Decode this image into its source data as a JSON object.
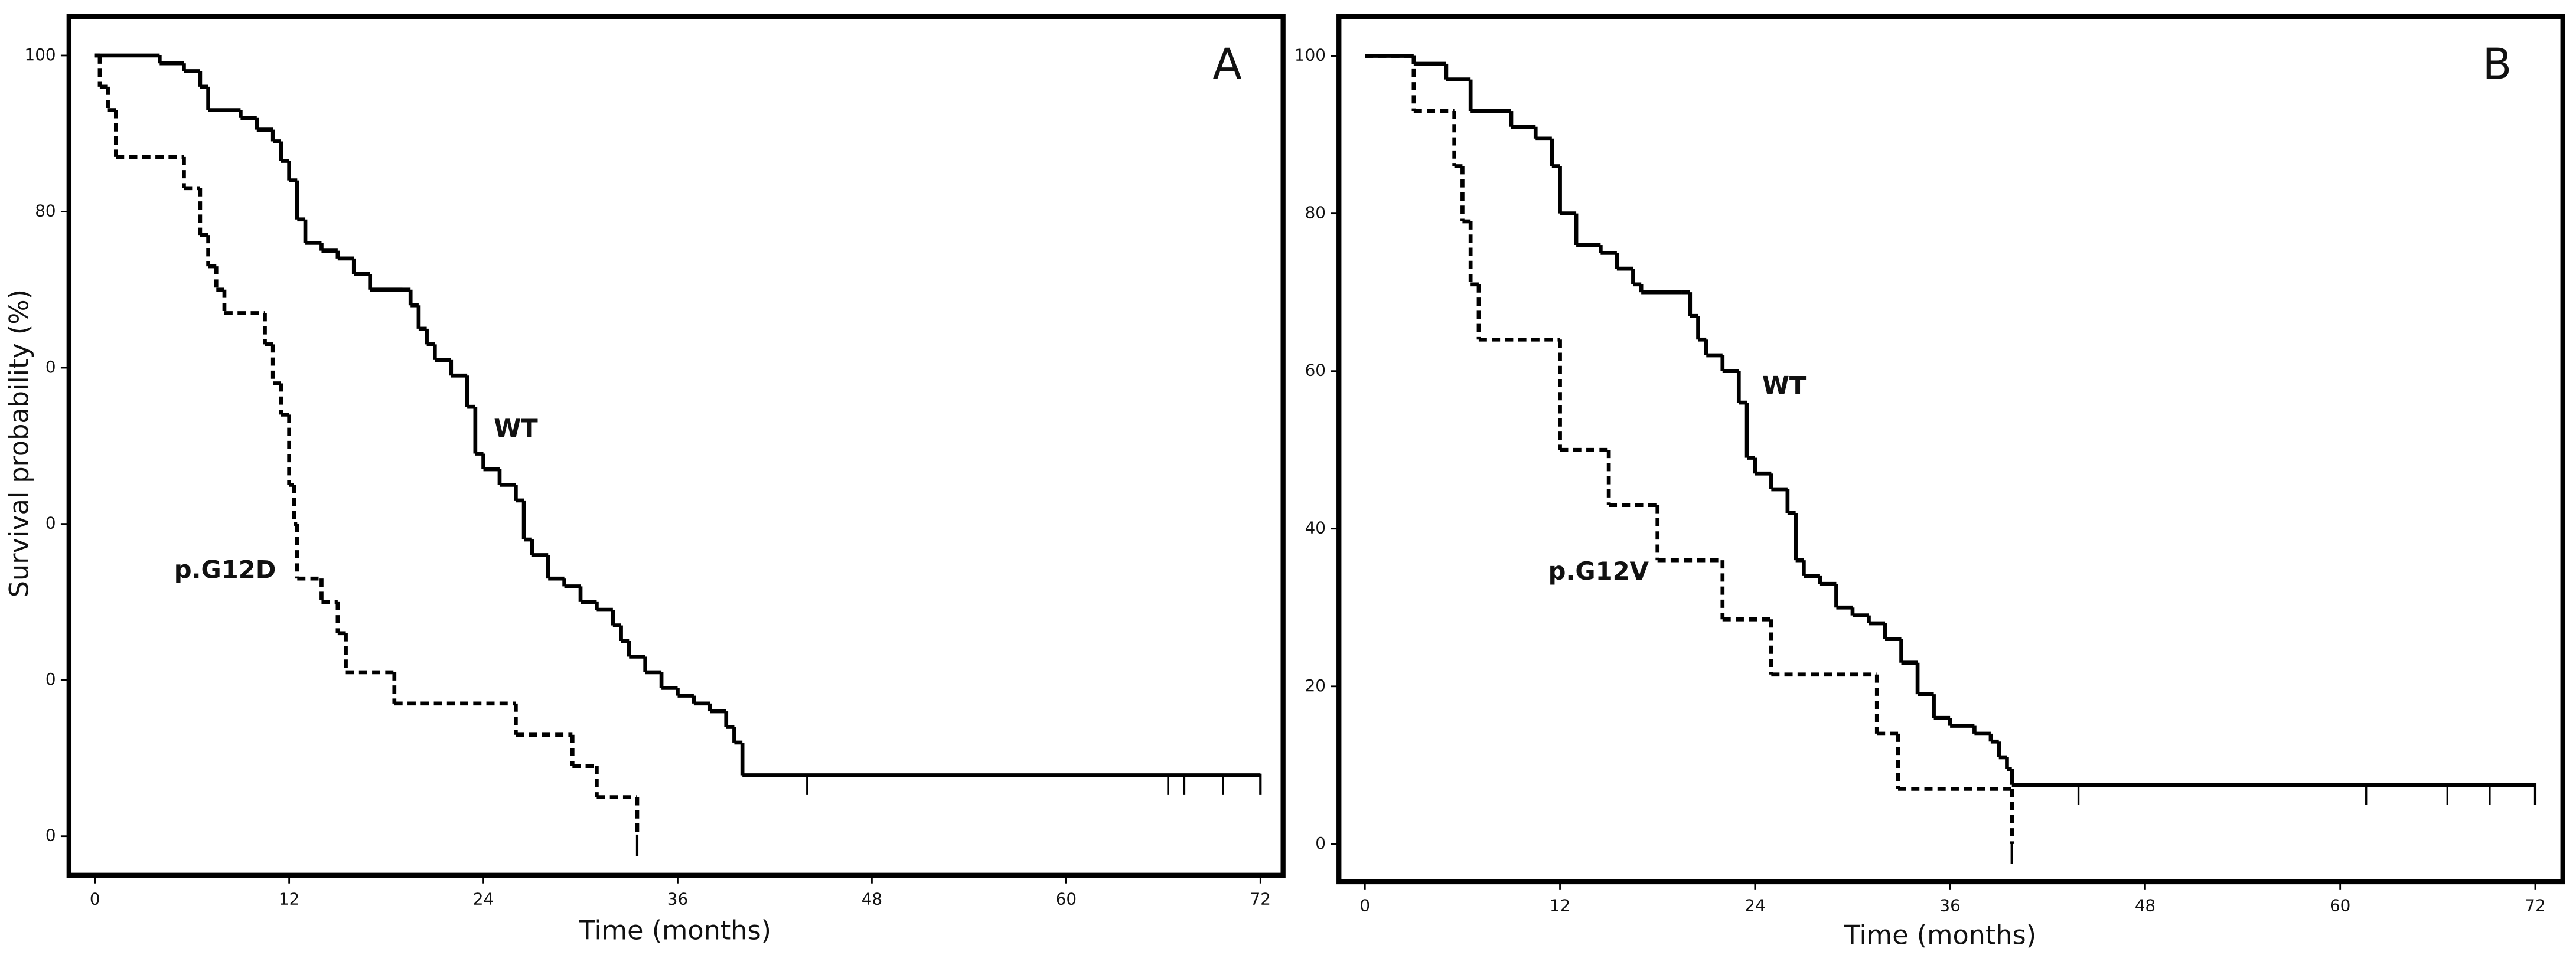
{
  "chart_data": [
    {
      "type": "line",
      "panel_label": "A",
      "x_label": "Time (months)",
      "y_label": "Survival probability (%)",
      "xlim": [
        -1.6,
        73.4
      ],
      "ylim": [
        -5,
        105
      ],
      "xticks": [
        0,
        12,
        24,
        36,
        48,
        60,
        72
      ],
      "yticks": [
        100,
        80,
        {
          "value": 60,
          "label": "0"
        },
        {
          "value": 40,
          "label": "0"
        },
        {
          "value": 20,
          "label": "0"
        },
        {
          "value": 0,
          "label": "0"
        }
      ],
      "series": [
        {
          "name": "WT",
          "style": "solid",
          "color": "#000000",
          "x": [
            0,
            4,
            5.5,
            6.5,
            7,
            9,
            10,
            11,
            11.5,
            12,
            12.5,
            13,
            14,
            15,
            16,
            17,
            19,
            19.5,
            20,
            20.5,
            21,
            22,
            23,
            23.5,
            24,
            25,
            26,
            26.5,
            27,
            28,
            29,
            30,
            31,
            32,
            32.5,
            33,
            34,
            35,
            36,
            37,
            38,
            39,
            39.5,
            40,
            72
          ],
          "values": [
            100,
            99,
            98,
            96,
            93,
            92,
            90.5,
            89,
            86.5,
            84,
            79,
            76,
            75,
            74,
            72,
            70,
            70,
            68,
            65,
            63,
            61,
            59,
            55,
            49,
            47,
            45,
            43,
            38,
            36,
            33,
            32,
            30,
            29,
            27,
            25,
            23,
            21,
            19,
            18,
            17,
            16,
            14,
            12,
            7.8,
            7.8
          ],
          "censored_x": [
            44,
            66.3,
            67.3,
            69.7
          ]
        },
        {
          "name": "p.G12D",
          "style": "dashed",
          "color": "#000000",
          "x": [
            0,
            0.3,
            0.8,
            1.3,
            5.5,
            6.5,
            7,
            7.5,
            8,
            10.5,
            11,
            11.5,
            12,
            12.3,
            12.5,
            14,
            15,
            15.5,
            18.5,
            26,
            29.5,
            31,
            33.5
          ],
          "values": [
            100,
            96,
            93,
            87,
            83,
            77,
            73,
            70,
            67,
            63,
            58,
            54,
            45,
            40,
            33,
            30,
            26,
            21,
            17,
            13,
            9,
            5,
            0
          ],
          "censored_x": []
        }
      ]
    },
    {
      "type": "line",
      "panel_label": "B",
      "x_label": "Time (months)",
      "xlim": [
        -1.6,
        73.7
      ],
      "ylim": [
        -4.8,
        105
      ],
      "xticks": [
        0,
        12,
        24,
        36,
        48,
        60,
        72
      ],
      "yticks": [
        0,
        20,
        40,
        60,
        80,
        100
      ],
      "series": [
        {
          "name": "WT",
          "style": "solid",
          "color": "#000000",
          "x": [
            0,
            3,
            5,
            6.5,
            9,
            10.5,
            11.5,
            12,
            13,
            14.5,
            15.5,
            16.5,
            17,
            19.5,
            20,
            20.5,
            21,
            22,
            23,
            23.5,
            24,
            25,
            26,
            26.5,
            27,
            28,
            29,
            30,
            31,
            32,
            33,
            34,
            35,
            36,
            37.5,
            38.5,
            39,
            39.5,
            39.8,
            72
          ],
          "values": [
            100,
            99,
            97,
            93,
            91,
            89.5,
            86,
            80,
            76,
            75,
            73,
            71,
            70,
            70,
            67,
            64,
            62,
            60,
            56,
            49,
            47,
            45,
            42,
            36,
            34,
            33,
            30,
            29,
            28,
            26,
            23,
            19,
            16,
            15,
            14,
            13,
            11,
            9.5,
            7.5,
            7.5
          ],
          "censored_x": [
            43.9,
            61.6,
            66.6,
            69.2
          ]
        },
        {
          "name": "p.G12V",
          "style": "dashed",
          "color": "#000000",
          "x": [
            0,
            3,
            5.5,
            6,
            6.5,
            7,
            12,
            15,
            18,
            22,
            25,
            31.5,
            32.8,
            39.8
          ],
          "values": [
            100,
            93,
            86,
            79,
            71,
            64,
            50,
            43,
            36,
            28.5,
            21.5,
            14,
            7,
            0
          ],
          "censored_x": []
        }
      ]
    }
  ]
}
